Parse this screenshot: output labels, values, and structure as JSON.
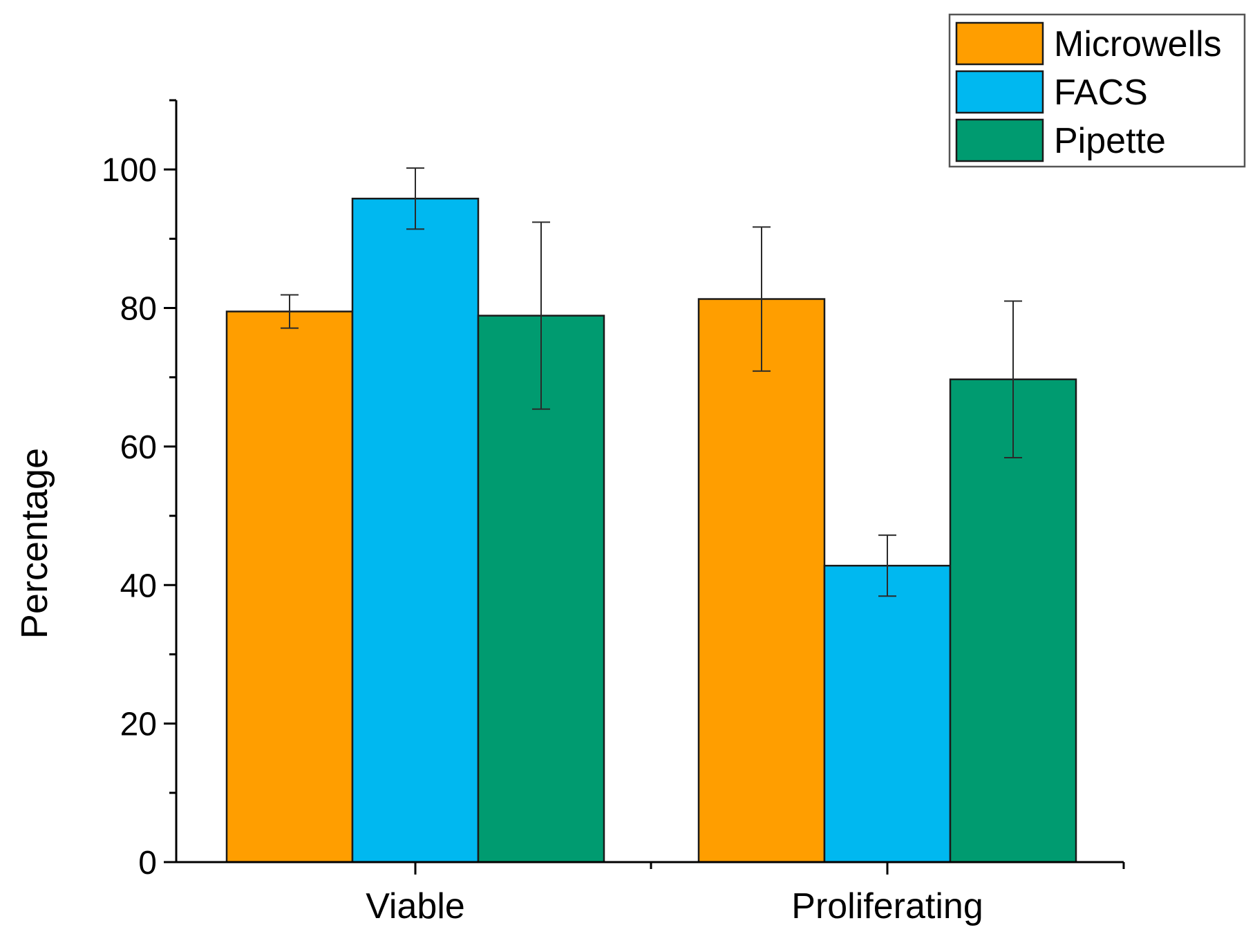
{
  "chart_data": {
    "type": "bar",
    "title": "",
    "xlabel": "",
    "ylabel": "Percentage",
    "ylim": [
      0,
      110
    ],
    "yticks": [
      0,
      20,
      40,
      60,
      80,
      100
    ],
    "ytick_labels": [
      "0",
      "20",
      "40",
      "60",
      "80",
      "100"
    ],
    "y_minor_step": 10,
    "categories": [
      "Viable",
      "Proliferating"
    ],
    "series": [
      {
        "name": "Microwells",
        "color": "#FF9E00",
        "values": [
          79.5,
          81.3
        ],
        "errors": [
          2.4,
          10.4
        ]
      },
      {
        "name": "FACS",
        "color": "#00B8F0",
        "values": [
          95.8,
          42.8
        ],
        "errors": [
          4.4,
          4.4
        ]
      },
      {
        "name": "Pipette",
        "color": "#009B70",
        "values": [
          78.9,
          69.7
        ],
        "errors": [
          13.5,
          11.3
        ]
      }
    ],
    "legend_position": "top-right",
    "grid": false
  }
}
